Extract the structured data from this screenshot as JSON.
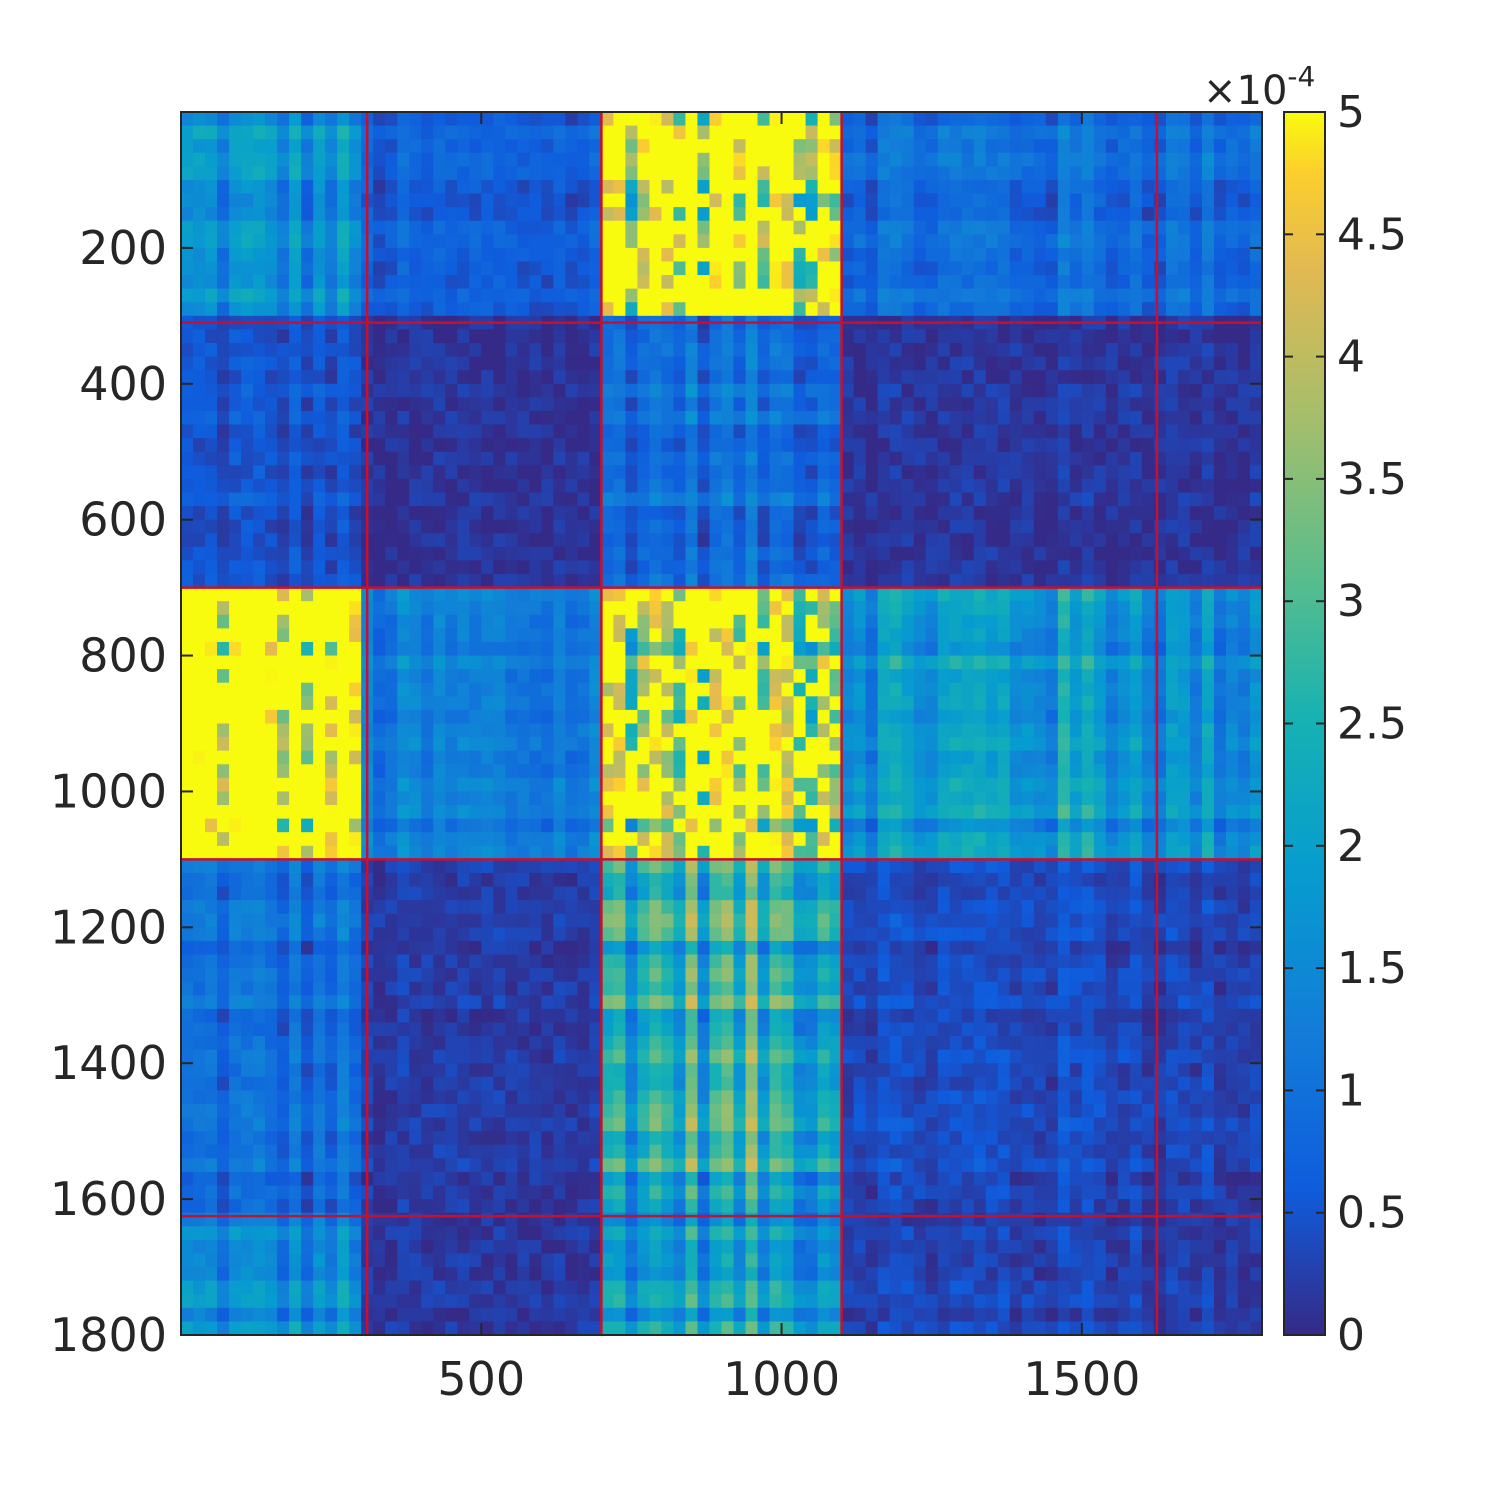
{
  "chart_data": {
    "type": "heatmap",
    "title": "",
    "xlabel": "",
    "ylabel": "",
    "matrix_size": 1800,
    "xlim": [
      1,
      1800
    ],
    "ylim": [
      1,
      1800
    ],
    "y_axis_direction": "reversed",
    "x_ticks": [
      500,
      1000,
      1500
    ],
    "x_tick_labels": [
      "500",
      "1000",
      "1500"
    ],
    "y_ticks": [
      200,
      400,
      600,
      800,
      1000,
      1200,
      1400,
      1600,
      1800
    ],
    "y_tick_labels": [
      "200",
      "400",
      "600",
      "800",
      "1000",
      "1200",
      "1400",
      "1600",
      "1800"
    ],
    "colorbar": {
      "min": 0,
      "max": 0.0005,
      "multiplier_label": "×10",
      "multiplier_exponent": "-4",
      "ticks": [
        0,
        0.5,
        1,
        1.5,
        2,
        2.5,
        3,
        3.5,
        4,
        4.5,
        5
      ],
      "tick_labels": [
        "0",
        "0.5",
        "1",
        "1.5",
        "2",
        "2.5",
        "3",
        "3.5",
        "4",
        "4.5",
        "5"
      ],
      "colormap": "parula",
      "position": "right"
    },
    "block_boundaries": [
      310,
      700,
      1100,
      1625
    ],
    "block_boundary_color": "#c8102e",
    "block_mean_intensity": [
      [
        0.3,
        0.12,
        0.92,
        0.18,
        0.18
      ],
      [
        0.1,
        0.02,
        0.2,
        0.03,
        0.03
      ],
      [
        0.92,
        0.22,
        0.72,
        0.35,
        0.3
      ],
      [
        0.18,
        0.04,
        0.5,
        0.08,
        0.06
      ],
      [
        0.28,
        0.03,
        0.38,
        0.06,
        0.04
      ]
    ]
  }
}
